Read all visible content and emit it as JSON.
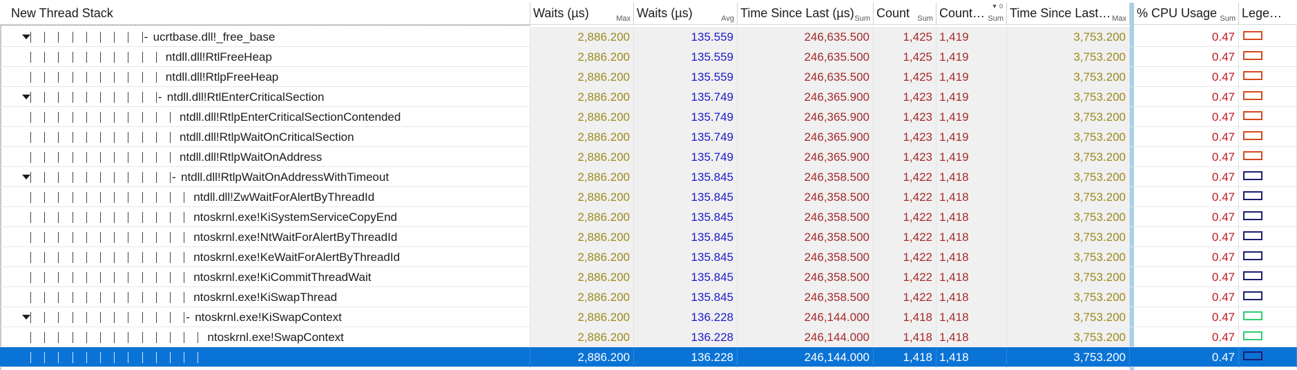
{
  "columns": [
    {
      "key": "stack",
      "label": "New Thread Stack",
      "agg": ""
    },
    {
      "key": "waits_max",
      "label": "Waits (µs)",
      "agg": "Max"
    },
    {
      "key": "waits_avg",
      "label": "Waits (µs)",
      "agg": "Avg"
    },
    {
      "key": "tsl_sum",
      "label": "Time Since Last (µs)",
      "agg": "Sum"
    },
    {
      "key": "count_sum",
      "label": "Count",
      "agg": "Sum"
    },
    {
      "key": "count2_sum",
      "label": "Count…",
      "agg": "Sum",
      "sort_indicator": "0"
    },
    {
      "key": "tsl_max",
      "label": "Time Since Last…",
      "agg": "Max"
    },
    {
      "key": "cpu",
      "label": "% CPU Usage",
      "agg": "Sum"
    },
    {
      "key": "legend",
      "label": "Lege…",
      "agg": ""
    }
  ],
  "colors": {
    "selection": "#0a73d6",
    "max_text": "#9b8a1e",
    "avg_text": "#1a1acc",
    "sum_text": "#a52a2a",
    "cpu_text": "#c0181c",
    "legend_orange": "#d24a1c",
    "legend_navy": "#1c1c6e",
    "legend_green": "#2ecc71"
  },
  "rows": [
    {
      "depth": 9,
      "expander": true,
      "branch": true,
      "name": "ucrtbase.dll!_free_base",
      "waits_max": "2,886.200",
      "waits_avg": "135.559",
      "tsl_sum": "246,635.500",
      "count_sum": "1,425",
      "count2_sum": "1,419",
      "tsl_max": "3,753.200",
      "cpu": "0.47",
      "legend": "orange"
    },
    {
      "depth": 10,
      "expander": false,
      "branch": false,
      "name": "ntdll.dll!RtlFreeHeap",
      "waits_max": "2,886.200",
      "waits_avg": "135.559",
      "tsl_sum": "246,635.500",
      "count_sum": "1,425",
      "count2_sum": "1,419",
      "tsl_max": "3,753.200",
      "cpu": "0.47",
      "legend": "orange"
    },
    {
      "depth": 10,
      "expander": false,
      "branch": false,
      "name": "ntdll.dll!RtlpFreeHeap",
      "waits_max": "2,886.200",
      "waits_avg": "135.559",
      "tsl_sum": "246,635.500",
      "count_sum": "1,425",
      "count2_sum": "1,419",
      "tsl_max": "3,753.200",
      "cpu": "0.47",
      "legend": "orange"
    },
    {
      "depth": 10,
      "expander": true,
      "branch": true,
      "name": "ntdll.dll!RtlEnterCriticalSection",
      "waits_max": "2,886.200",
      "waits_avg": "135.749",
      "tsl_sum": "246,365.900",
      "count_sum": "1,423",
      "count2_sum": "1,419",
      "tsl_max": "3,753.200",
      "cpu": "0.47",
      "legend": "orange"
    },
    {
      "depth": 11,
      "expander": false,
      "branch": false,
      "name": "ntdll.dll!RtlpEnterCriticalSectionContended",
      "waits_max": "2,886.200",
      "waits_avg": "135.749",
      "tsl_sum": "246,365.900",
      "count_sum": "1,423",
      "count2_sum": "1,419",
      "tsl_max": "3,753.200",
      "cpu": "0.47",
      "legend": "orange"
    },
    {
      "depth": 11,
      "expander": false,
      "branch": false,
      "name": "ntdll.dll!RtlpWaitOnCriticalSection",
      "waits_max": "2,886.200",
      "waits_avg": "135.749",
      "tsl_sum": "246,365.900",
      "count_sum": "1,423",
      "count2_sum": "1,419",
      "tsl_max": "3,753.200",
      "cpu": "0.47",
      "legend": "orange"
    },
    {
      "depth": 11,
      "expander": false,
      "branch": false,
      "name": "ntdll.dll!RtlpWaitOnAddress",
      "waits_max": "2,886.200",
      "waits_avg": "135.749",
      "tsl_sum": "246,365.900",
      "count_sum": "1,423",
      "count2_sum": "1,419",
      "tsl_max": "3,753.200",
      "cpu": "0.47",
      "legend": "orange"
    },
    {
      "depth": 11,
      "expander": true,
      "branch": true,
      "name": "ntdll.dll!RtlpWaitOnAddressWithTimeout",
      "waits_max": "2,886.200",
      "waits_avg": "135.845",
      "tsl_sum": "246,358.500",
      "count_sum": "1,422",
      "count2_sum": "1,418",
      "tsl_max": "3,753.200",
      "cpu": "0.47",
      "legend": "navy"
    },
    {
      "depth": 12,
      "expander": false,
      "branch": false,
      "name": "ntdll.dll!ZwWaitForAlertByThreadId",
      "waits_max": "2,886.200",
      "waits_avg": "135.845",
      "tsl_sum": "246,358.500",
      "count_sum": "1,422",
      "count2_sum": "1,418",
      "tsl_max": "3,753.200",
      "cpu": "0.47",
      "legend": "navy"
    },
    {
      "depth": 12,
      "expander": false,
      "branch": false,
      "name": "ntoskrnl.exe!KiSystemServiceCopyEnd",
      "waits_max": "2,886.200",
      "waits_avg": "135.845",
      "tsl_sum": "246,358.500",
      "count_sum": "1,422",
      "count2_sum": "1,418",
      "tsl_max": "3,753.200",
      "cpu": "0.47",
      "legend": "navy"
    },
    {
      "depth": 12,
      "expander": false,
      "branch": false,
      "name": "ntoskrnl.exe!NtWaitForAlertByThreadId",
      "waits_max": "2,886.200",
      "waits_avg": "135.845",
      "tsl_sum": "246,358.500",
      "count_sum": "1,422",
      "count2_sum": "1,418",
      "tsl_max": "3,753.200",
      "cpu": "0.47",
      "legend": "navy"
    },
    {
      "depth": 12,
      "expander": false,
      "branch": false,
      "name": "ntoskrnl.exe!KeWaitForAlertByThreadId",
      "waits_max": "2,886.200",
      "waits_avg": "135.845",
      "tsl_sum": "246,358.500",
      "count_sum": "1,422",
      "count2_sum": "1,418",
      "tsl_max": "3,753.200",
      "cpu": "0.47",
      "legend": "navy"
    },
    {
      "depth": 12,
      "expander": false,
      "branch": false,
      "name": "ntoskrnl.exe!KiCommitThreadWait",
      "waits_max": "2,886.200",
      "waits_avg": "135.845",
      "tsl_sum": "246,358.500",
      "count_sum": "1,422",
      "count2_sum": "1,418",
      "tsl_max": "3,753.200",
      "cpu": "0.47",
      "legend": "navy"
    },
    {
      "depth": 12,
      "expander": false,
      "branch": false,
      "name": "ntoskrnl.exe!KiSwapThread",
      "waits_max": "2,886.200",
      "waits_avg": "135.845",
      "tsl_sum": "246,358.500",
      "count_sum": "1,422",
      "count2_sum": "1,418",
      "tsl_max": "3,753.200",
      "cpu": "0.47",
      "legend": "navy"
    },
    {
      "depth": 12,
      "expander": true,
      "branch": true,
      "name": "ntoskrnl.exe!KiSwapContext",
      "waits_max": "2,886.200",
      "waits_avg": "136.228",
      "tsl_sum": "246,144.000",
      "count_sum": "1,418",
      "count2_sum": "1,418",
      "tsl_max": "3,753.200",
      "cpu": "0.47",
      "legend": "green"
    },
    {
      "depth": 13,
      "expander": false,
      "branch": false,
      "name": "ntoskrnl.exe!SwapContext",
      "waits_max": "2,886.200",
      "waits_avg": "136.228",
      "tsl_sum": "246,144.000",
      "count_sum": "1,418",
      "count2_sum": "1,418",
      "tsl_max": "3,753.200",
      "cpu": "0.47",
      "legend": "green"
    },
    {
      "depth": 13,
      "expander": false,
      "branch": false,
      "name": "",
      "selected": true,
      "waits_max": "2,886.200",
      "waits_avg": "136.228",
      "tsl_sum": "246,144.000",
      "count_sum": "1,418",
      "count2_sum": "1,418",
      "tsl_max": "3,753.200",
      "cpu": "0.47",
      "legend": "navy"
    }
  ]
}
